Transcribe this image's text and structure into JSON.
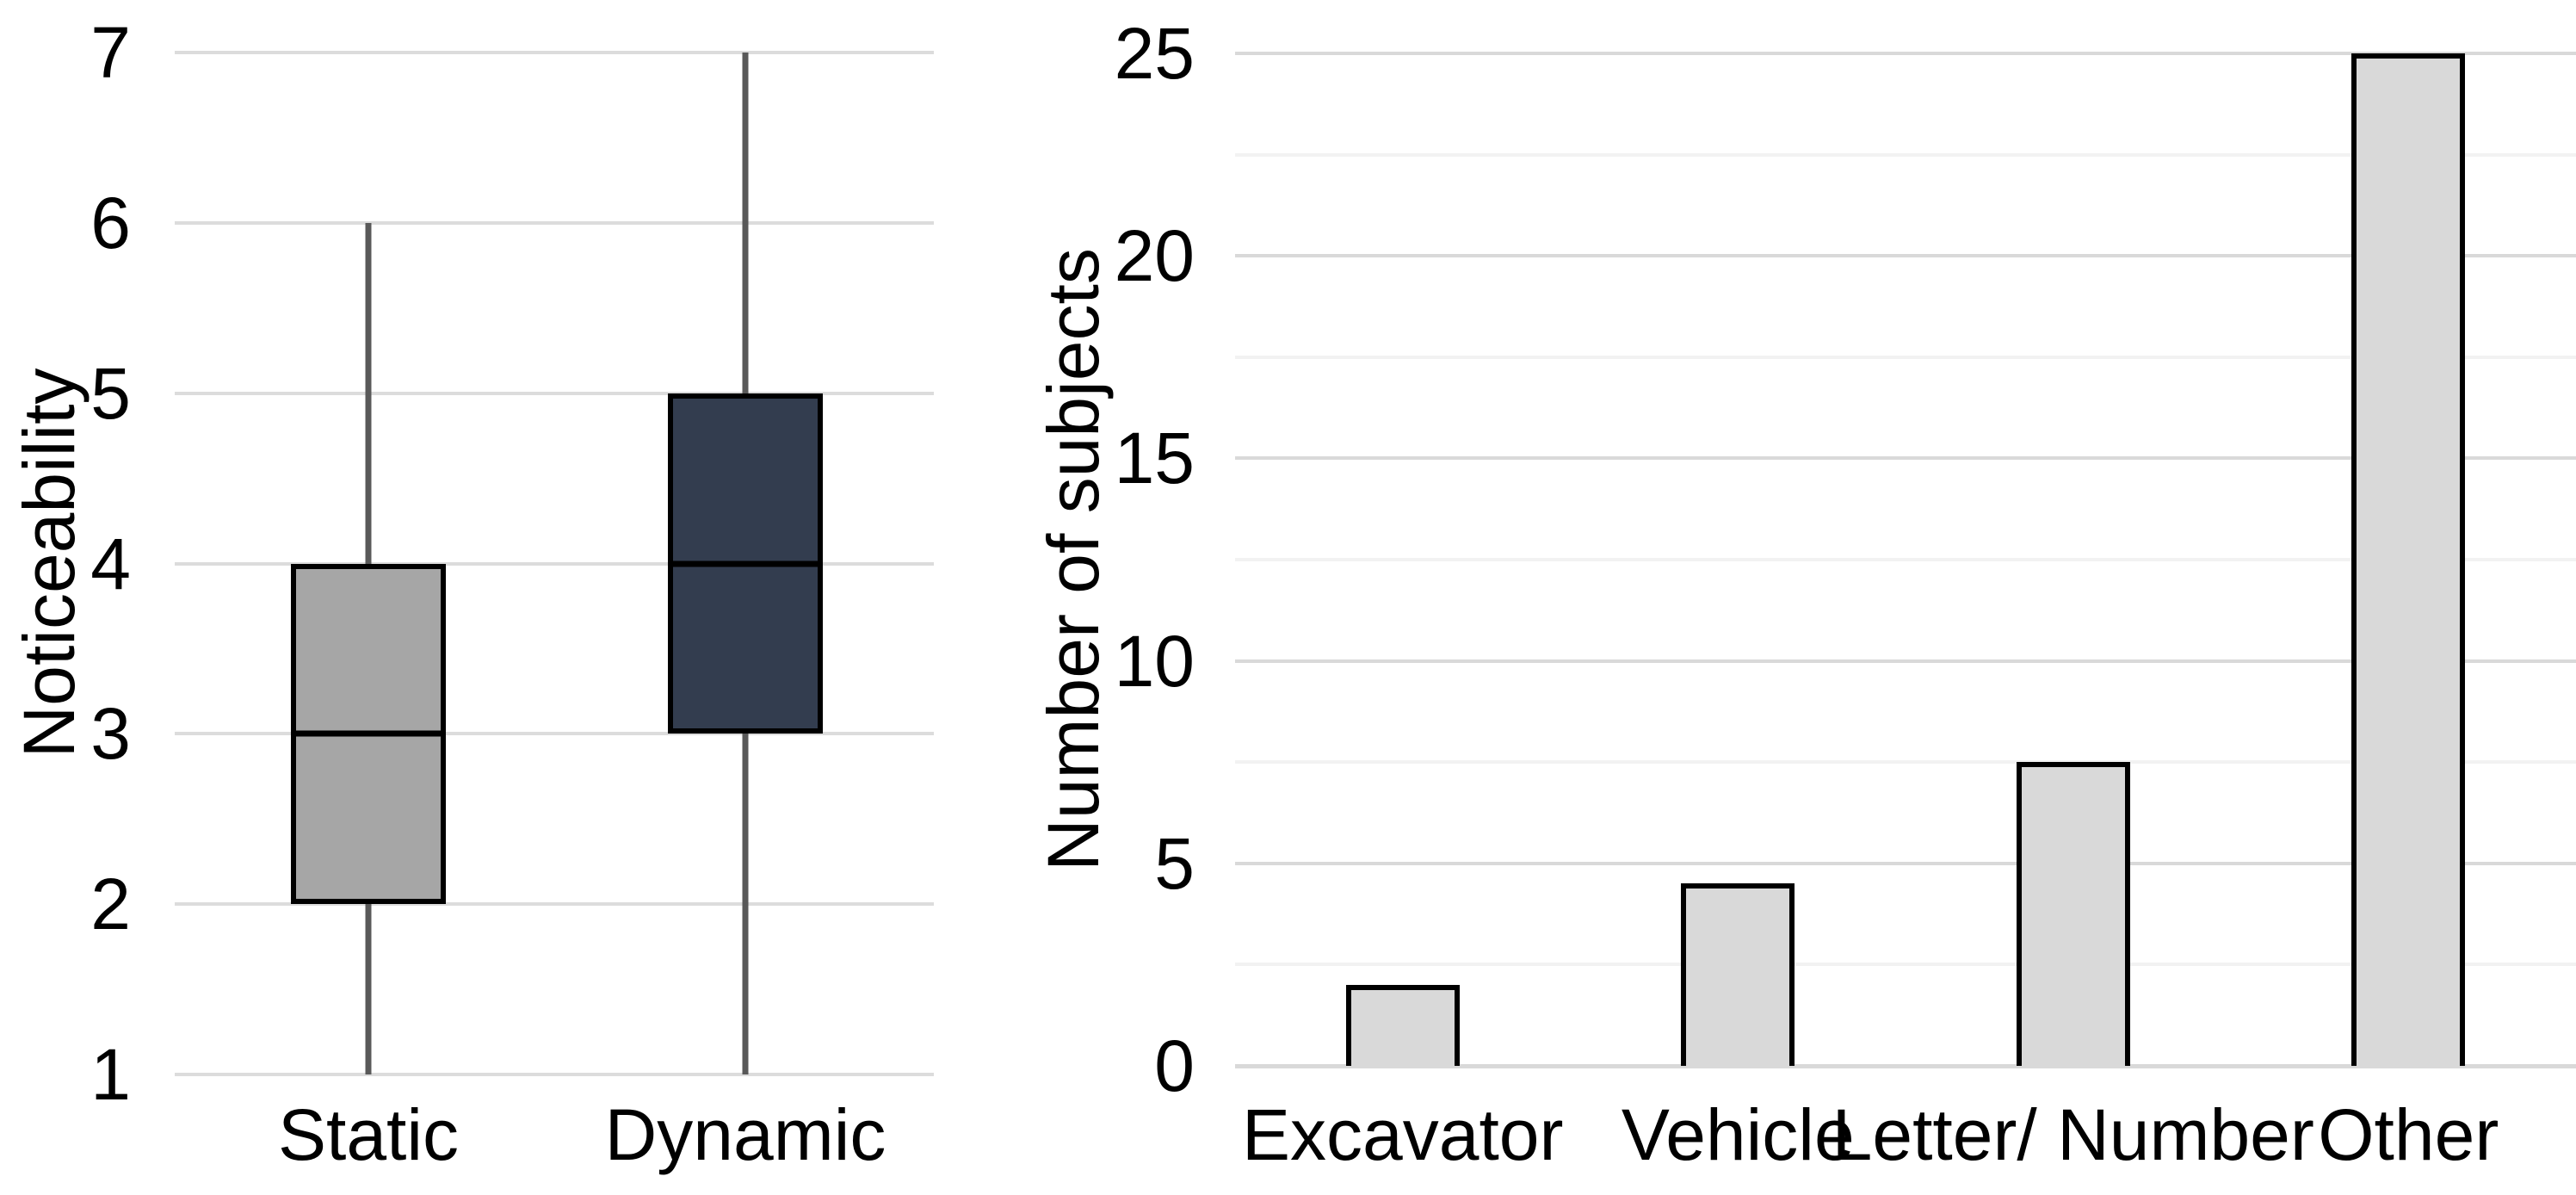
{
  "figure": {
    "background": "#ffffff",
    "text_color": "#000000"
  },
  "chart_data": [
    {
      "type": "boxplot",
      "title": "",
      "xlabel": "",
      "ylabel": "Noticeability",
      "ylim": [
        1,
        7
      ],
      "yticks": [
        "1",
        "2",
        "3",
        "4",
        "5",
        "6",
        "7"
      ],
      "grid": "horizontal-major-on",
      "legend": "none",
      "categories": [
        "Static",
        "Dynamic"
      ],
      "series": [
        {
          "category": "Static",
          "whisker_low": 1,
          "q1": 2,
          "median": 3,
          "q3": 4,
          "whisker_high": 6,
          "fill": "#a6a6a6"
        },
        {
          "category": "Dynamic",
          "whisker_low": 1,
          "q1": 3,
          "median": 4,
          "q3": 5,
          "whisker_high": 7,
          "fill": "#333d4f"
        }
      ],
      "colors": {
        "grid": "#dcdcdc",
        "whisker": "#595959",
        "box_border": "#000000",
        "median": "#000000"
      }
    },
    {
      "type": "bar",
      "title": "",
      "xlabel": "",
      "ylabel": "Number of subjects",
      "ylim": [
        0,
        25
      ],
      "yticks": [
        "0",
        "5",
        "10",
        "15",
        "20",
        "25"
      ],
      "minor_tick_unit": 2.5,
      "grid": "horizontal-major-and-minor-on",
      "legend": "none",
      "categories": [
        "Excavator",
        "Vehicle",
        "Letter/ Number",
        "Other"
      ],
      "values": [
        2,
        4.5,
        7.5,
        25
      ],
      "colors": {
        "bar_fill": "#d9d9d9",
        "bar_border": "#000000",
        "grid_major": "#d9d9d9",
        "grid_minor": "#f2f2f2",
        "baseline": "#d9d9d9"
      }
    }
  ]
}
